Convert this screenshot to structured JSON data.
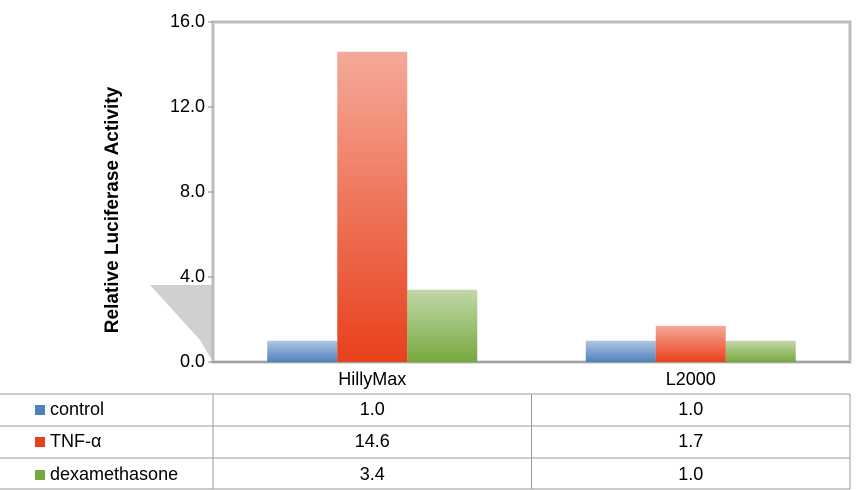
{
  "chart_data": {
    "type": "bar",
    "y_axis_label": "Relative Luciferase Activity",
    "categories": [
      "HillyMax",
      "L2000"
    ],
    "series": [
      {
        "name": "control",
        "color": "#4f81bd",
        "values": [
          1.0,
          1.0
        ],
        "value_labels": [
          "1.0",
          "1.0"
        ]
      },
      {
        "name": "TNF-α",
        "color": "#e8401c",
        "values": [
          14.6,
          1.7
        ],
        "value_labels": [
          "14.6",
          "1.7"
        ]
      },
      {
        "name": "dexamethasone",
        "color": "#77a83f",
        "values": [
          3.4,
          1.0
        ],
        "value_labels": [
          "3.4",
          "1.0"
        ]
      }
    ],
    "ylim": [
      0,
      16
    ],
    "yticks": [
      {
        "value": 0,
        "label": "0.0"
      },
      {
        "value": 4,
        "label": "4.0"
      },
      {
        "value": 8,
        "label": "8.0"
      },
      {
        "value": 12,
        "label": "12.0"
      },
      {
        "value": 16,
        "label": "16.0"
      }
    ],
    "grid": false
  }
}
